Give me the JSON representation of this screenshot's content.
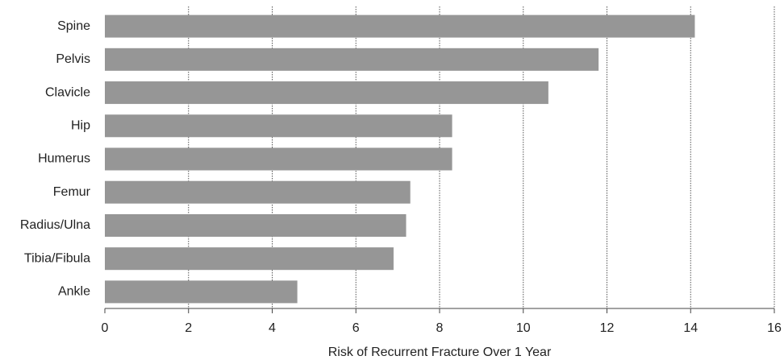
{
  "chart_data": {
    "type": "bar",
    "orientation": "horizontal",
    "x_label": "Risk of Recurrent Fracture Over 1 Year",
    "categories": [
      "Spine",
      "Pelvis",
      "Clavicle",
      "Hip",
      "Humerus",
      "Femur",
      "Radius/Ulna",
      "Tibia/Fibula",
      "Ankle"
    ],
    "values": [
      14.1,
      11.8,
      10.6,
      8.3,
      8.3,
      7.3,
      7.2,
      6.9,
      4.6
    ],
    "color": "#969696",
    "xlim": [
      0,
      16
    ],
    "xticks": [
      0,
      2,
      4,
      6,
      8,
      10,
      12,
      14,
      16
    ],
    "grid": true
  }
}
